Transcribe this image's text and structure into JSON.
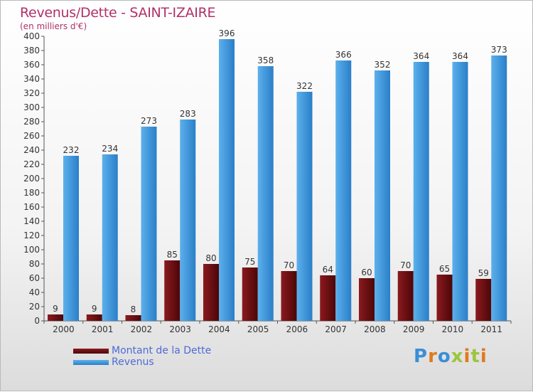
{
  "title": "Revenus/Dette - SAINT-IZAIRE",
  "subtitle": "(en milliers d'€)",
  "legend": {
    "dette": "Montant de la Dette",
    "revenus": "Revenus"
  },
  "logo": "Proxiti",
  "colors": {
    "dette": "#6e0f12",
    "revenus": "#3a95dc",
    "title": "#b0306a",
    "legend_text": "#4d6bd6"
  },
  "chart_data": {
    "type": "bar",
    "title": "Revenus/Dette - SAINT-IZAIRE",
    "ylabel": "(en milliers d'€)",
    "xlabel": "",
    "categories": [
      "2000",
      "2001",
      "2002",
      "2003",
      "2004",
      "2005",
      "2006",
      "2007",
      "2008",
      "2009",
      "2010",
      "2011"
    ],
    "series": [
      {
        "name": "Montant de la Dette",
        "values": [
          9,
          9,
          8,
          85,
          80,
          75,
          70,
          64,
          60,
          70,
          65,
          59
        ]
      },
      {
        "name": "Revenus",
        "values": [
          232,
          234,
          273,
          283,
          396,
          358,
          322,
          366,
          352,
          364,
          364,
          373
        ]
      }
    ],
    "ylim": [
      0,
      400
    ],
    "yticks": [
      0,
      20,
      40,
      60,
      80,
      100,
      120,
      140,
      160,
      180,
      200,
      220,
      240,
      260,
      280,
      300,
      320,
      340,
      360,
      380,
      400
    ],
    "grid": false,
    "legend_position": "bottom-left"
  }
}
